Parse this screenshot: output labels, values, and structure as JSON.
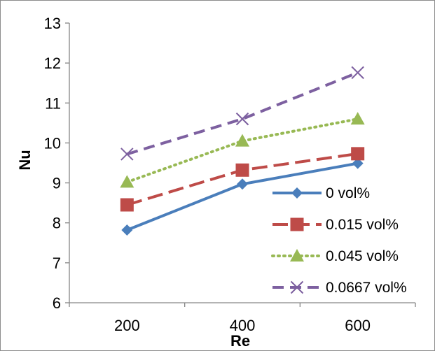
{
  "chart_data": {
    "type": "line",
    "title": "",
    "xlabel": "Re",
    "ylabel": "Nu",
    "categories": [
      "200",
      "400",
      "600"
    ],
    "x": [
      200,
      400,
      600
    ],
    "ylim": [
      6,
      13
    ],
    "yticks": [
      "6",
      "7",
      "8",
      "9",
      "10",
      "11",
      "12",
      "13"
    ],
    "grid": false,
    "legend_position": "right",
    "series": [
      {
        "name": "0 vol%",
        "values": [
          7.82,
          8.97,
          9.49
        ],
        "color": "#4a7ebb",
        "marker": "diamond",
        "dash": "solid"
      },
      {
        "name": "0.015 vol%",
        "values": [
          8.45,
          9.32,
          9.73
        ],
        "color": "#be4b48",
        "marker": "square",
        "dash": "longdash"
      },
      {
        "name": "0.045 vol%",
        "values": [
          9.02,
          10.05,
          10.6
        ],
        "color": "#98b954",
        "marker": "triangle",
        "dash": "dotted"
      },
      {
        "name": "0.0667 vol%",
        "values": [
          9.72,
          10.6,
          11.76
        ],
        "color": "#7d60a0",
        "marker": "x",
        "dash": "dashed"
      }
    ]
  }
}
